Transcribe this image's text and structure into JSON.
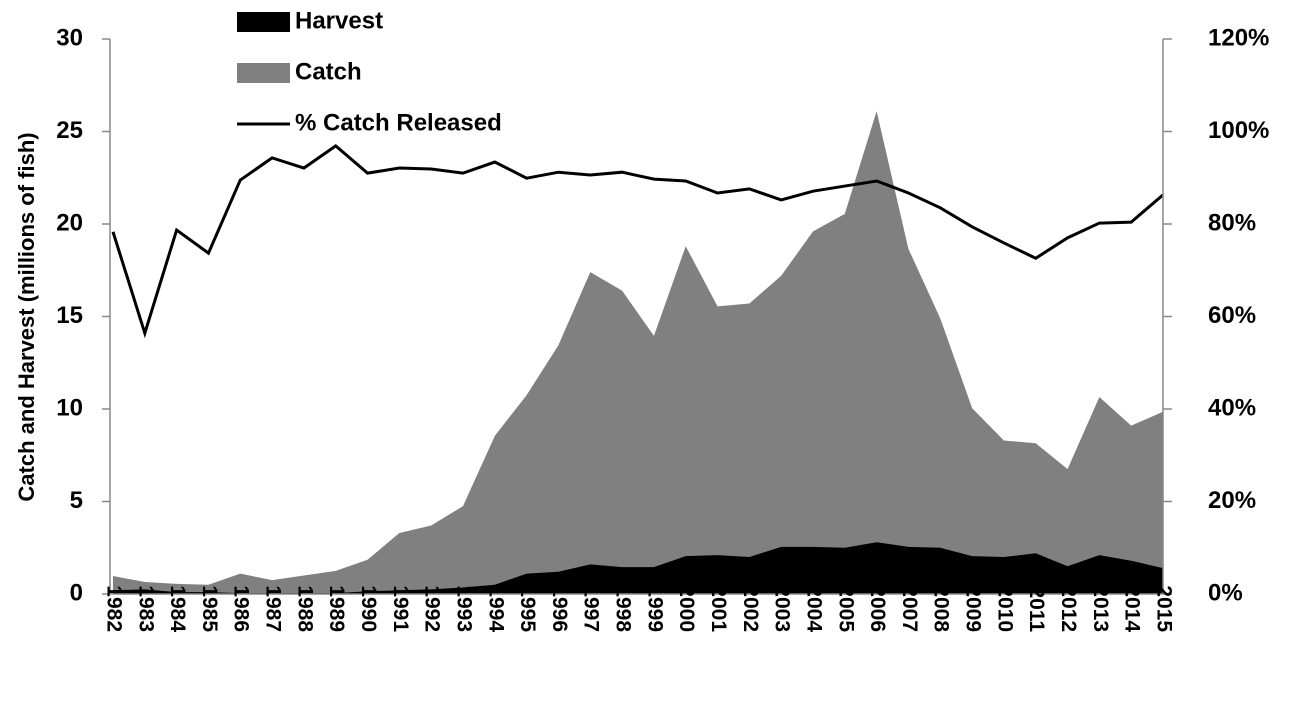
{
  "chart_data": {
    "type": "area_line",
    "y_label": "Catch and Harvest (millions of fish)",
    "categories": [
      "1982",
      "1983",
      "1984",
      "1985",
      "1986",
      "1987",
      "1988",
      "1989",
      "1990",
      "1991",
      "1992",
      "1993",
      "1994",
      "1995",
      "1996",
      "1997",
      "1998",
      "1999",
      "2000",
      "2001",
      "2002",
      "2003",
      "2004",
      "2005",
      "2006",
      "2007",
      "2008",
      "2009",
      "2010",
      "2011",
      "2012",
      "2013",
      "2014",
      "2015"
    ],
    "series": [
      {
        "name": "Harvest",
        "color": "#000000",
        "kind": "area",
        "values": [
          0.2,
          0.25,
          0.1,
          0.1,
          0.05,
          0.05,
          0.05,
          0.05,
          0.15,
          0.2,
          0.25,
          0.35,
          0.5,
          1.1,
          1.2,
          1.6,
          1.45,
          1.45,
          2.05,
          2.1,
          2.0,
          2.55,
          2.55,
          2.5,
          2.8,
          2.55,
          2.5,
          2.05,
          2.0,
          2.2,
          1.5,
          2.1,
          1.8,
          1.4
        ]
      },
      {
        "name": "Catch",
        "color": "#808080",
        "kind": "area",
        "values": [
          0.97,
          0.65,
          0.55,
          0.5,
          1.1,
          0.75,
          1.0,
          1.25,
          1.85,
          3.3,
          3.7,
          4.75,
          8.55,
          10.75,
          13.45,
          17.4,
          16.4,
          13.95,
          18.8,
          15.55,
          15.7,
          17.2,
          19.6,
          20.55,
          26.1,
          18.65,
          14.9,
          10.05,
          8.3,
          8.15,
          6.75,
          10.65,
          9.1,
          9.85
        ]
      },
      {
        "name": "% Catch Released",
        "color": "#000000",
        "kind": "line",
        "axis": "y2",
        "values": [
          78.3,
          56.4,
          78.7,
          73.7,
          89.5,
          94.3,
          92.1,
          96.9,
          91.0,
          92.1,
          91.9,
          91.0,
          93.4,
          89.9,
          91.2,
          90.6,
          91.2,
          89.7,
          89.3,
          86.7,
          87.6,
          85.2,
          87.1,
          88.2,
          89.3,
          86.7,
          83.5,
          79.4,
          75.9,
          72.6,
          77.0,
          80.2,
          80.4,
          86.3
        ]
      }
    ],
    "ylim": [
      0,
      30
    ],
    "yticks": [
      0,
      5,
      10,
      15,
      20,
      25,
      30
    ],
    "y2lim": [
      0,
      120
    ],
    "y2ticks": [
      {
        "value": 0,
        "label": "0%"
      },
      {
        "value": 20,
        "label": "20%"
      },
      {
        "value": 40,
        "label": "40%"
      },
      {
        "value": 60,
        "label": "60%"
      },
      {
        "value": 80,
        "label": "80%"
      },
      {
        "value": 100,
        "label": "100%"
      },
      {
        "value": 120,
        "label": "120%"
      }
    ],
    "legend": "top-left"
  }
}
